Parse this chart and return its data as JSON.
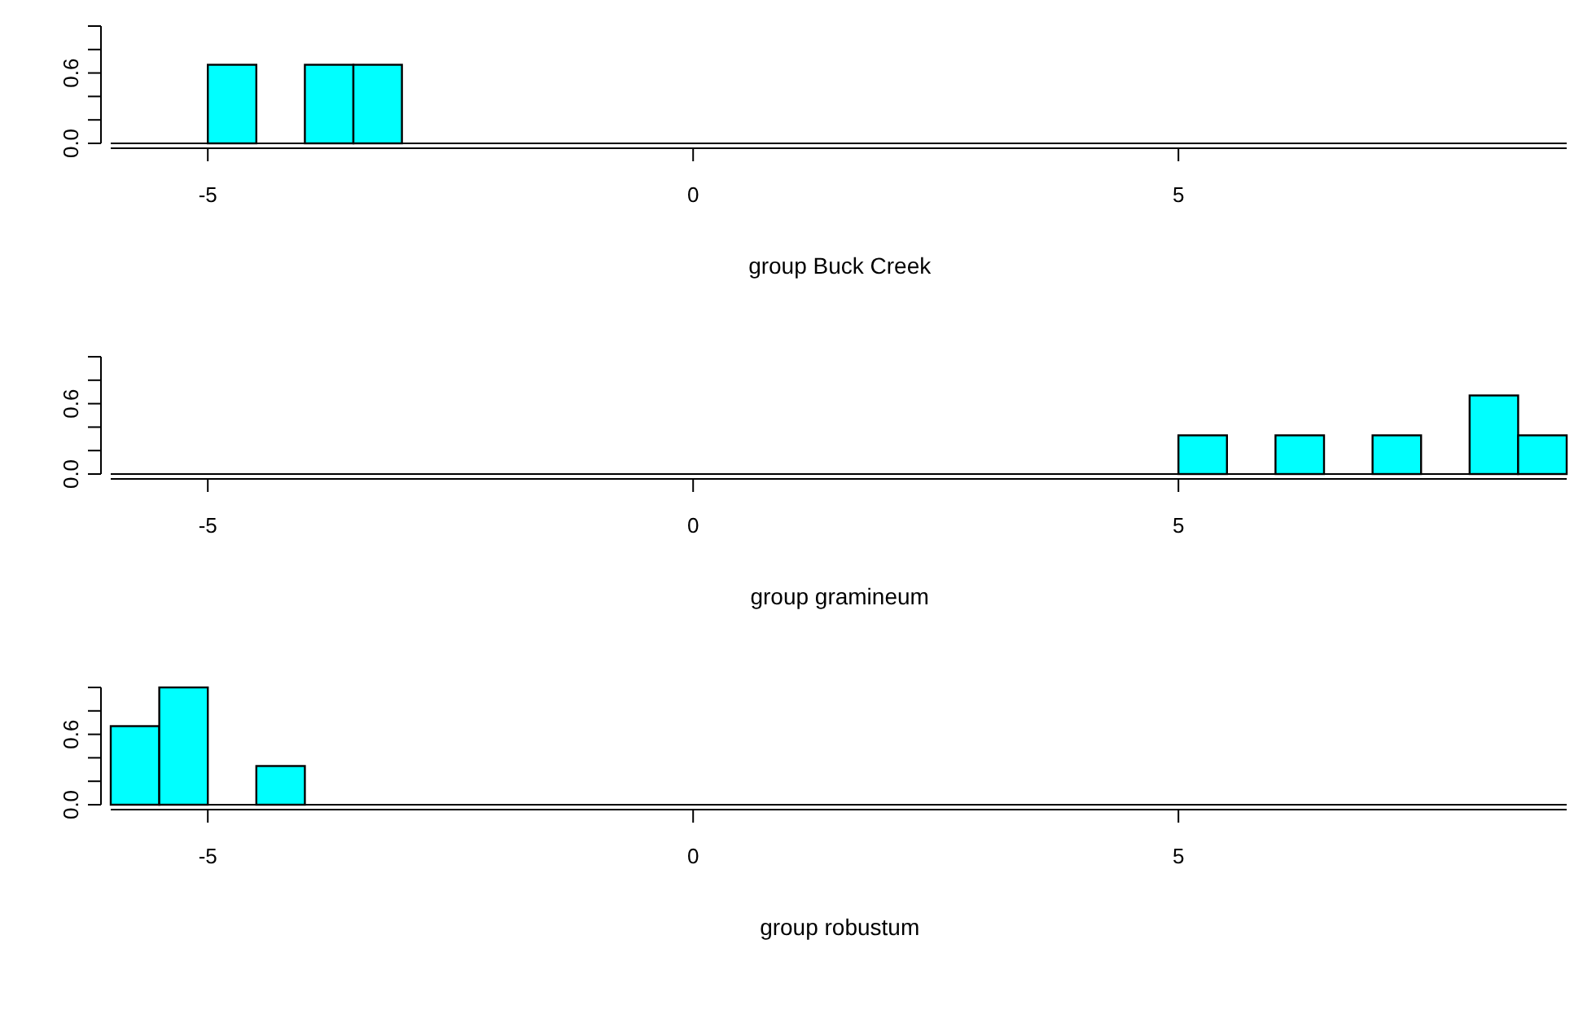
{
  "chart_data": [
    {
      "type": "histogram",
      "xlabel": "group Buck Creek",
      "bins": [
        -5,
        -4.5,
        -4,
        -3.5,
        -3
      ],
      "values": [
        0.67,
        0,
        0.67,
        0.67
      ],
      "color": "#00ffff",
      "xlim": [
        -6,
        9
      ],
      "xticks": [
        -5,
        0,
        5
      ],
      "ylim": [
        0,
        1
      ],
      "yticks": [
        {
          "value": 0,
          "label": "0.0"
        },
        {
          "value": 0.2,
          "label": null
        },
        {
          "value": 0.4,
          "label": null
        },
        {
          "value": 0.6,
          "label": "0.6"
        },
        {
          "value": 0.8,
          "label": null
        },
        {
          "value": 1,
          "label": null
        }
      ],
      "grid": false
    },
    {
      "type": "histogram",
      "xlabel": "group gramineum",
      "bins": [
        5,
        5.5,
        6,
        6.5,
        7,
        7.5,
        8,
        8.5,
        9
      ],
      "values": [
        0.33,
        0,
        0.33,
        0,
        0.33,
        0,
        0.67,
        0.33
      ],
      "color": "#00ffff",
      "xlim": [
        -6,
        9
      ],
      "xticks": [
        -5,
        0,
        5
      ],
      "ylim": [
        0,
        1
      ],
      "yticks": [
        {
          "value": 0,
          "label": "0.0"
        },
        {
          "value": 0.2,
          "label": null
        },
        {
          "value": 0.4,
          "label": null
        },
        {
          "value": 0.6,
          "label": "0.6"
        },
        {
          "value": 0.8,
          "label": null
        },
        {
          "value": 1,
          "label": null
        }
      ],
      "grid": false
    },
    {
      "type": "histogram",
      "xlabel": "group robustum",
      "bins": [
        -6,
        -5.5,
        -5,
        -4.5,
        -4
      ],
      "values": [
        0.67,
        1,
        0,
        0.33
      ],
      "color": "#00ffff",
      "xlim": [
        -6,
        9
      ],
      "xticks": [
        -5,
        0,
        5
      ],
      "ylim": [
        0,
        1
      ],
      "yticks": [
        {
          "value": 0,
          "label": "0.0"
        },
        {
          "value": 0.2,
          "label": null
        },
        {
          "value": 0.4,
          "label": null
        },
        {
          "value": 0.6,
          "label": "0.6"
        },
        {
          "value": 0.8,
          "label": null
        },
        {
          "value": 1,
          "label": null
        }
      ],
      "grid": false
    }
  ]
}
